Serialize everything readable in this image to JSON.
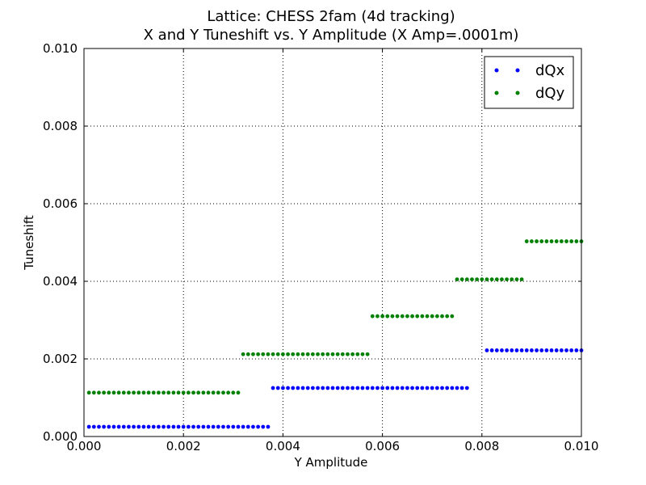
{
  "chart_data": {
    "type": "scatter",
    "title": "Lattice: CHESS 2fam (4d tracking)",
    "subtitle": "X and Y Tuneshift vs. Y Amplitude (X Amp=.0001m)",
    "xlabel": "Y Amplitude",
    "ylabel": "Tuneshift",
    "xlim": [
      0,
      0.01
    ],
    "ylim": [
      0,
      0.01
    ],
    "xticks": [
      "0.000",
      "0.002",
      "0.004",
      "0.006",
      "0.008",
      "0.010"
    ],
    "yticks": [
      "0.000",
      "0.002",
      "0.004",
      "0.006",
      "0.008",
      "0.010"
    ],
    "grid": true,
    "legend_position": "top-right",
    "x_step": 0.0001,
    "series": [
      {
        "name": "dQx",
        "color": "#0000ff",
        "segments": [
          {
            "x_start": 0.0001,
            "x_end": 0.0037,
            "y": 0.00025
          },
          {
            "x_start": 0.0038,
            "x_end": 0.0077,
            "y": 0.00125
          },
          {
            "x_start": 0.0081,
            "x_end": 0.01,
            "y": 0.00222
          }
        ]
      },
      {
        "name": "dQy",
        "color": "#008000",
        "segments": [
          {
            "x_start": 0.0001,
            "x_end": 0.0031,
            "y": 0.00113
          },
          {
            "x_start": 0.0032,
            "x_end": 0.0057,
            "y": 0.00212
          },
          {
            "x_start": 0.0058,
            "x_end": 0.0074,
            "y": 0.0031
          },
          {
            "x_start": 0.0075,
            "x_end": 0.0088,
            "y": 0.00405
          },
          {
            "x_start": 0.0089,
            "x_end": 0.01,
            "y": 0.00503
          }
        ]
      }
    ]
  }
}
